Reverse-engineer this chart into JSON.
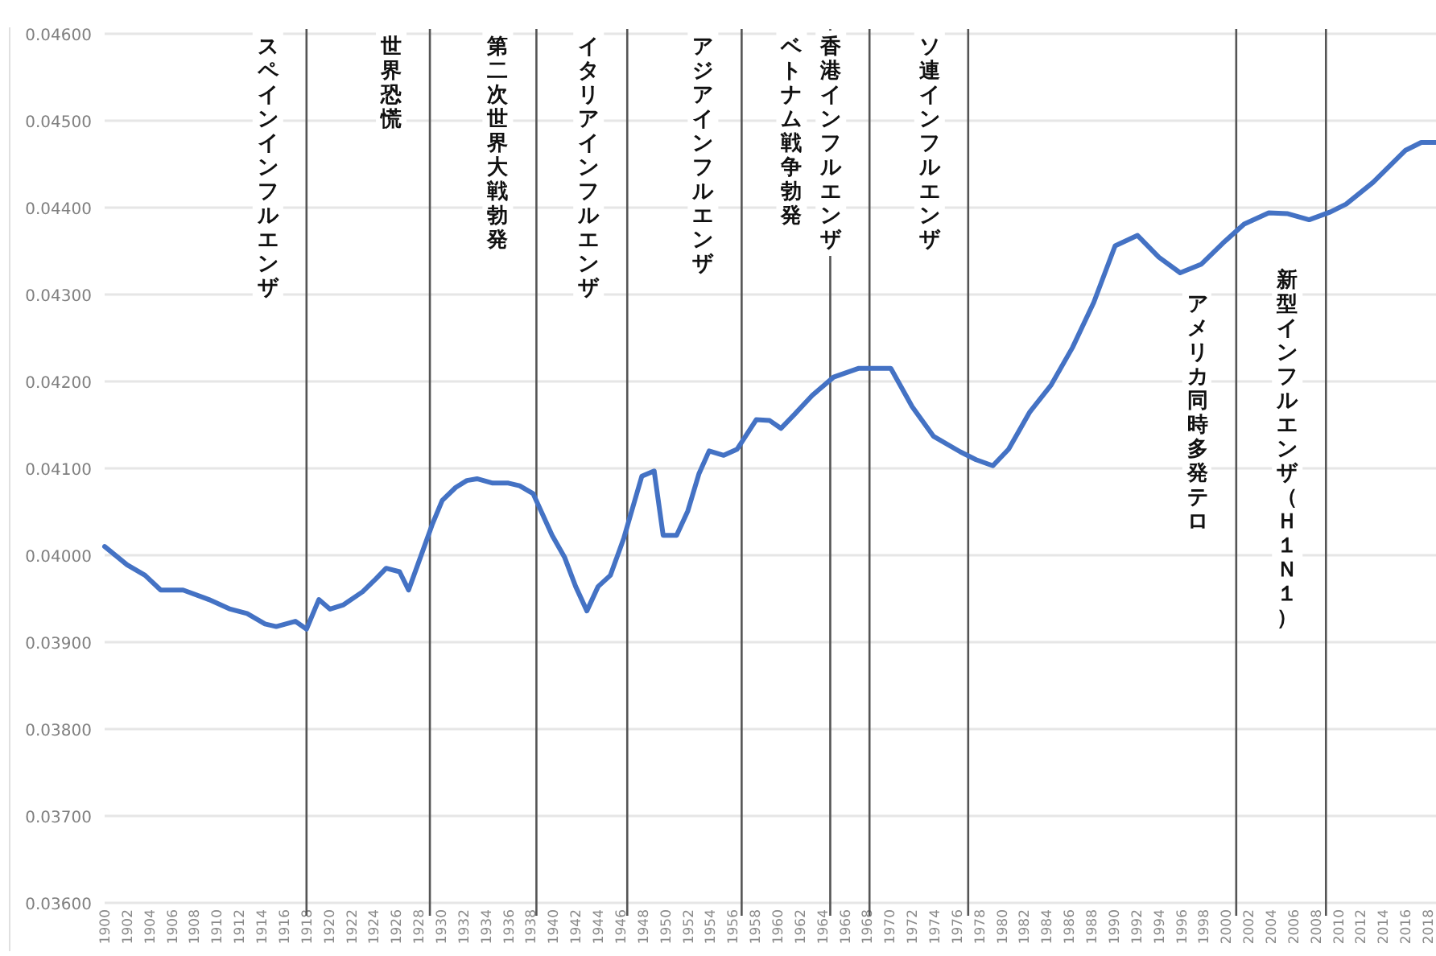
{
  "chart_data": {
    "type": "line",
    "x": [
      1900,
      1902,
      1903.6,
      1905,
      1907,
      1909.3,
      1911.2,
      1912.7,
      1914.3,
      1915.3,
      1917,
      1918,
      1919.1,
      1920.1,
      1921.3,
      1923,
      1924.2,
      1925.1,
      1926.3,
      1927.1,
      1928,
      1929.2,
      1930.1,
      1931.3,
      1932.3,
      1933.2,
      1934.6,
      1936,
      1937,
      1938.2,
      1939.9,
      1941,
      1942,
      1943,
      1944,
      1945.1,
      1946.3,
      1947.9,
      1949,
      1949.8,
      1951,
      1952,
      1953,
      1953.9,
      1955.2,
      1956.4,
      1958.1,
      1959.3,
      1960.3,
      1961.5,
      1963.1,
      1965,
      1967.2,
      1968.1,
      1970.1,
      1972,
      1973.9,
      1976.3,
      1977.7,
      1979.2,
      1980.6,
      1982.5,
      1984.4,
      1986.3,
      1988.2,
      1990.1,
      1992.1,
      1994,
      1995.9,
      1997.8,
      1999.7,
      2001.6,
      2003.8,
      2005.5,
      2007.4,
      2009.3,
      2010.7,
      2013.1,
      2016,
      2017.4,
      2018.7
    ],
    "series": [
      {
        "color": "#4472c4",
        "values": [
          0.0401,
          0.03989,
          0.03977,
          0.0396,
          0.0396,
          0.03949,
          0.03938,
          0.03933,
          0.03921,
          0.03918,
          0.03924,
          0.03915,
          0.03949,
          0.03938,
          0.03943,
          0.03958,
          0.03973,
          0.03985,
          0.03981,
          0.0396,
          0.03992,
          0.04035,
          0.04063,
          0.04078,
          0.04086,
          0.04088,
          0.04083,
          0.04083,
          0.0408,
          0.04071,
          0.04023,
          0.03998,
          0.03964,
          0.03936,
          0.03964,
          0.03977,
          0.0402,
          0.04091,
          0.04097,
          0.04023,
          0.04023,
          0.04051,
          0.04094,
          0.0412,
          0.04115,
          0.04122,
          0.04156,
          0.04155,
          0.04146,
          0.04162,
          0.04184,
          0.04205,
          0.04215,
          0.04215,
          0.04215,
          0.04171,
          0.04137,
          0.04119,
          0.0411,
          0.04103,
          0.04122,
          0.04165,
          0.04196,
          0.04239,
          0.04291,
          0.04356,
          0.04368,
          0.04343,
          0.04325,
          0.04335,
          0.04359,
          0.04381,
          0.04394,
          0.04393,
          0.04386,
          0.04395,
          0.04404,
          0.04429,
          0.04466,
          0.04475,
          0.04475
        ]
      }
    ],
    "xlim": [
      1900,
      2019
    ],
    "xticks": [
      1900,
      1902,
      1904,
      1906,
      1908,
      1910,
      1912,
      1914,
      1916,
      1918,
      1920,
      1922,
      1924,
      1926,
      1928,
      1930,
      1932,
      1934,
      1936,
      1938,
      1940,
      1942,
      1944,
      1946,
      1948,
      1950,
      1952,
      1954,
      1956,
      1958,
      1960,
      1962,
      1964,
      1966,
      1968,
      1970,
      1972,
      1974,
      1976,
      1978,
      1980,
      1982,
      1984,
      1986,
      1988,
      1990,
      1992,
      1994,
      1996,
      1998,
      2000,
      2002,
      2004,
      2006,
      2008,
      2010,
      2012,
      2014,
      2016,
      2018
    ],
    "ylim": [
      0.036,
      0.046
    ],
    "yticks": [
      {
        "value": 0.036,
        "label": "0.03600"
      },
      {
        "value": 0.037,
        "label": "0.03700"
      },
      {
        "value": 0.038,
        "label": "0.03800"
      },
      {
        "value": 0.039,
        "label": "0.03900"
      },
      {
        "value": 0.04,
        "label": "0.04000"
      },
      {
        "value": 0.041,
        "label": "0.04100"
      },
      {
        "value": 0.042,
        "label": "0.04200"
      },
      {
        "value": 0.043,
        "label": "0.04300"
      },
      {
        "value": 0.044,
        "label": "0.04400"
      },
      {
        "value": 0.045,
        "label": "0.04500"
      },
      {
        "value": 0.046,
        "label": "0.04600"
      }
    ],
    "grid": "y",
    "line_style": "solid",
    "marker": "none",
    "ref_lines": [
      {
        "axis": "x",
        "value": 1918,
        "label": "スペインインフルエンザ",
        "color": "#555555"
      },
      {
        "axis": "x",
        "value": 1929,
        "label": "世界恐慌",
        "color": "#555555"
      },
      {
        "axis": "x",
        "value": 1938.5,
        "label": "第二次世界大戦勃発",
        "color": "#555555"
      },
      {
        "axis": "x",
        "value": 1946.6,
        "label": "イタリアインフルエンザ",
        "color": "#555555"
      },
      {
        "axis": "x",
        "value": 1956.8,
        "label": "アジアインフルエンザ",
        "color": "#555555"
      },
      {
        "axis": "x",
        "value": 1964.7,
        "label": "ベトナム戦争勃発",
        "color": "#555555"
      },
      {
        "axis": "x",
        "value": 1968.2,
        "label": "香港インフルエンザ",
        "color": "#555555"
      },
      {
        "axis": "x",
        "value": 1977,
        "label": "ソ連インフルエンザ",
        "color": "#555555"
      },
      {
        "axis": "x",
        "value": 2000.9,
        "label": "アメリカ同時多発テロ",
        "color": "#555555"
      },
      {
        "axis": "x",
        "value": 2008.9,
        "label": "新型インフルエンザ（Ｈ１Ｎ１）",
        "color": "#555555"
      }
    ]
  }
}
